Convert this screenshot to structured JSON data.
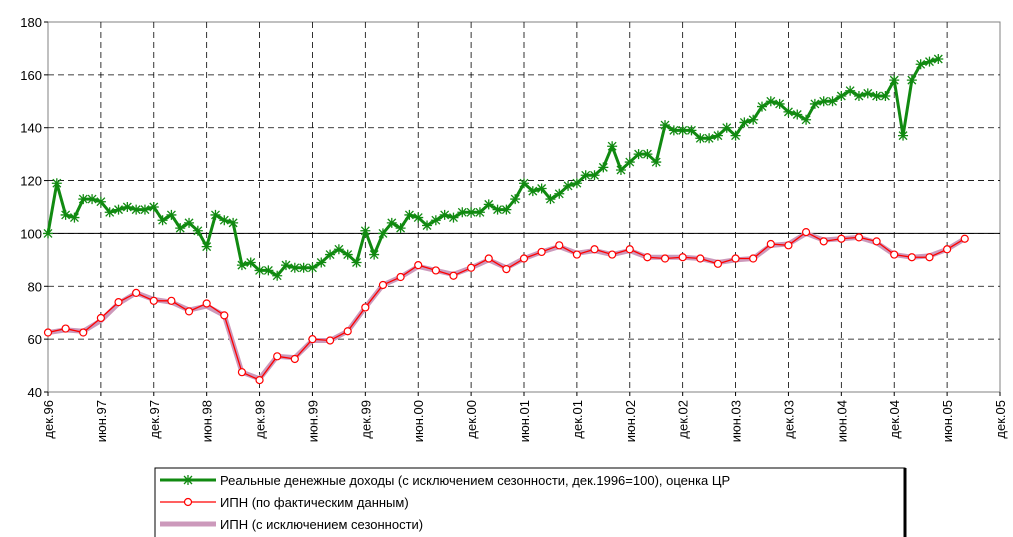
{
  "chart_data": {
    "type": "line",
    "categories": [
      "дек.96",
      null,
      null,
      null,
      null,
      null,
      "июн.97",
      null,
      null,
      null,
      null,
      null,
      "дек.97",
      null,
      null,
      null,
      null,
      null,
      "июн.98",
      null,
      null,
      null,
      null,
      null,
      "дек.98",
      null,
      null,
      null,
      null,
      null,
      "июн.99",
      null,
      null,
      null,
      null,
      null,
      "дек.99",
      null,
      null,
      null,
      null,
      null,
      "июн.00",
      null,
      null,
      null,
      null,
      null,
      "дек.00",
      null,
      null,
      null,
      null,
      null,
      "июн.01",
      null,
      null,
      null,
      null,
      null,
      "дек.01",
      null,
      null,
      null,
      null,
      null,
      "июн.02",
      null,
      null,
      null,
      null,
      null,
      "дек.02",
      null,
      null,
      null,
      null,
      null,
      "июн.03",
      null,
      null,
      null,
      null,
      null,
      "дек.03",
      null,
      null,
      null,
      null,
      null,
      "июн.04",
      null,
      null,
      null,
      null,
      null,
      "дек.04",
      null,
      null,
      null,
      null,
      null,
      "июн.05",
      null,
      null,
      null,
      null,
      null,
      "дек.05"
    ],
    "series": [
      {
        "name": "Реальные денежные доходы (с исключением сезонности, дек.1996=100), оценка ЦР",
        "color": "#118a11",
        "marker": "star",
        "values": [
          100,
          119,
          107,
          106,
          113,
          113,
          112,
          108,
          109,
          110,
          109,
          109,
          110,
          105,
          107,
          102,
          104,
          101,
          95,
          107,
          105,
          104,
          88,
          89,
          86,
          86,
          84,
          88,
          87,
          87,
          87,
          89,
          92,
          94,
          92,
          89,
          101,
          92,
          100,
          104,
          102,
          107,
          106,
          103,
          105,
          107,
          106,
          108,
          108,
          108,
          111,
          109,
          109,
          113,
          119,
          116,
          117,
          113,
          115,
          118,
          119,
          122,
          122,
          125,
          133,
          124,
          127,
          130,
          130,
          127,
          141,
          139,
          139,
          139,
          136,
          136,
          137,
          140,
          137,
          142,
          143,
          148,
          150,
          149,
          146,
          145,
          143,
          149,
          150,
          150,
          152,
          154,
          152,
          153,
          152,
          152,
          158,
          137,
          158,
          164,
          165,
          166,
          null,
          null,
          null,
          null,
          null,
          null,
          null
        ]
      },
      {
        "name": "ИПН (с исключением сезонности)",
        "color": "#cc99bb",
        "marker": "none",
        "x": [
          0,
          2,
          4,
          6,
          8,
          10,
          12,
          14,
          16,
          18,
          20,
          22,
          24,
          26,
          28,
          30,
          32,
          34,
          36,
          38,
          40,
          42,
          44,
          46,
          48,
          50,
          52,
          54,
          56,
          58,
          60,
          62,
          64,
          66,
          68,
          70,
          72,
          74,
          76,
          78,
          80,
          82,
          84,
          86,
          88,
          90,
          92,
          94,
          96,
          98,
          100,
          102,
          104
        ],
        "values": [
          62.5,
          63.5,
          63,
          67,
          73.5,
          77.5,
          75,
          74,
          71,
          72.5,
          69,
          47.5,
          45,
          53.5,
          53,
          59.5,
          59.5,
          63,
          72,
          80.5,
          83.5,
          87.5,
          86,
          84.5,
          87,
          90,
          87,
          90.5,
          93,
          95,
          92.5,
          93.5,
          92,
          93.5,
          91,
          91,
          91,
          90.5,
          89,
          90,
          90.5,
          95.5,
          96,
          100,
          97.5,
          98,
          98.5,
          96.5,
          92,
          91,
          91.5,
          94,
          98
        ]
      },
      {
        "name": "ИПН (по фактическим данным)",
        "color": "#ff0000",
        "marker": "circle",
        "x": [
          0,
          2,
          4,
          6,
          8,
          10,
          12,
          14,
          16,
          18,
          20,
          22,
          24,
          26,
          28,
          30,
          32,
          34,
          36,
          38,
          40,
          42,
          44,
          46,
          48,
          50,
          52,
          54,
          56,
          58,
          60,
          62,
          64,
          66,
          68,
          70,
          72,
          74,
          76,
          78,
          80,
          82,
          84,
          86,
          88,
          90,
          92,
          94,
          96,
          98,
          100,
          102,
          104
        ],
        "values": [
          62.5,
          64,
          62.5,
          68,
          74,
          77.5,
          74.5,
          74.5,
          70.5,
          73.5,
          69,
          47.5,
          44.5,
          53.5,
          52.5,
          60,
          59.5,
          63,
          72,
          80.5,
          83.5,
          88,
          86,
          84,
          87,
          90.5,
          86.5,
          90.5,
          93,
          95.5,
          92,
          94,
          92,
          94,
          91,
          90.5,
          91,
          90.5,
          88.5,
          90.5,
          90.5,
          96,
          95.5,
          100.5,
          97,
          98,
          98.5,
          97,
          92,
          91,
          91,
          94,
          98
        ]
      }
    ],
    "legend_order": [
      0,
      2,
      1
    ],
    "ylim": [
      40,
      180
    ],
    "yticks": [
      40,
      60,
      80,
      100,
      120,
      140,
      160,
      180
    ],
    "reference_line": 100,
    "grid": true
  }
}
